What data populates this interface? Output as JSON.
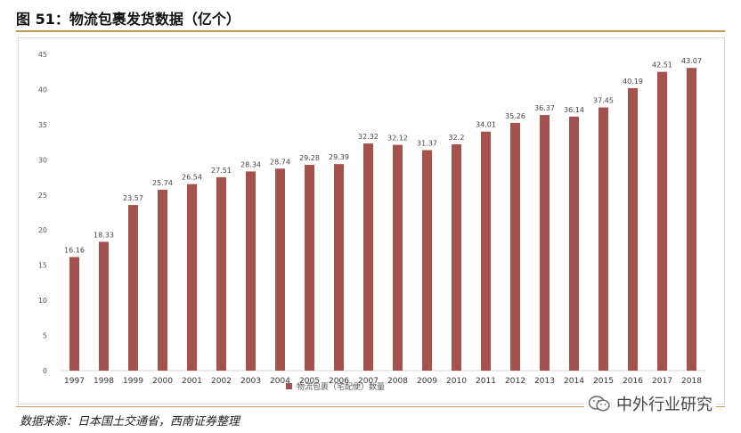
{
  "header": {
    "title": "图 51：物流包裹发货数据（亿个）"
  },
  "footer": {
    "source": "数据来源：日本国土交通省，西南证券整理",
    "watermark": "中外行业研究",
    "watermark_icon": "wechat-icon"
  },
  "colors": {
    "bar": "#a5524e",
    "rule": "#c29a5b",
    "axis": "#d9d9d9"
  },
  "chart_data": {
    "type": "bar",
    "categories": [
      "1997",
      "1998",
      "1999",
      "2000",
      "2001",
      "2002",
      "2003",
      "2004",
      "2005",
      "2006",
      "2007",
      "2008",
      "2009",
      "2010",
      "2011",
      "2012",
      "2013",
      "2014",
      "2015",
      "2016",
      "2017",
      "2018"
    ],
    "series": [
      {
        "name": "物流包裹（宅配便）数量",
        "values": [
          16.16,
          18.33,
          23.57,
          25.74,
          26.54,
          27.51,
          28.34,
          28.74,
          29.28,
          29.39,
          32.32,
          32.12,
          31.37,
          32.2,
          34.01,
          35.26,
          36.37,
          36.14,
          37.45,
          40.19,
          42.51,
          43.07
        ],
        "labels": [
          "16.16",
          "18.33",
          "23.57",
          "25.74",
          "26.54",
          "27.51",
          "28.34",
          "28.74",
          "29.28",
          "29.39",
          "32.32",
          "32.12",
          "31.37",
          "32.2",
          "34.01",
          "35.26",
          "36.37",
          "36.14",
          "37.45",
          "40.19",
          "42.51",
          "43.07"
        ]
      }
    ],
    "yticks": [
      "0",
      "5",
      "10",
      "15",
      "20",
      "25",
      "30",
      "35",
      "40",
      "45"
    ],
    "ylim": [
      0,
      45
    ],
    "grid": false,
    "legend_position": "bottom"
  }
}
